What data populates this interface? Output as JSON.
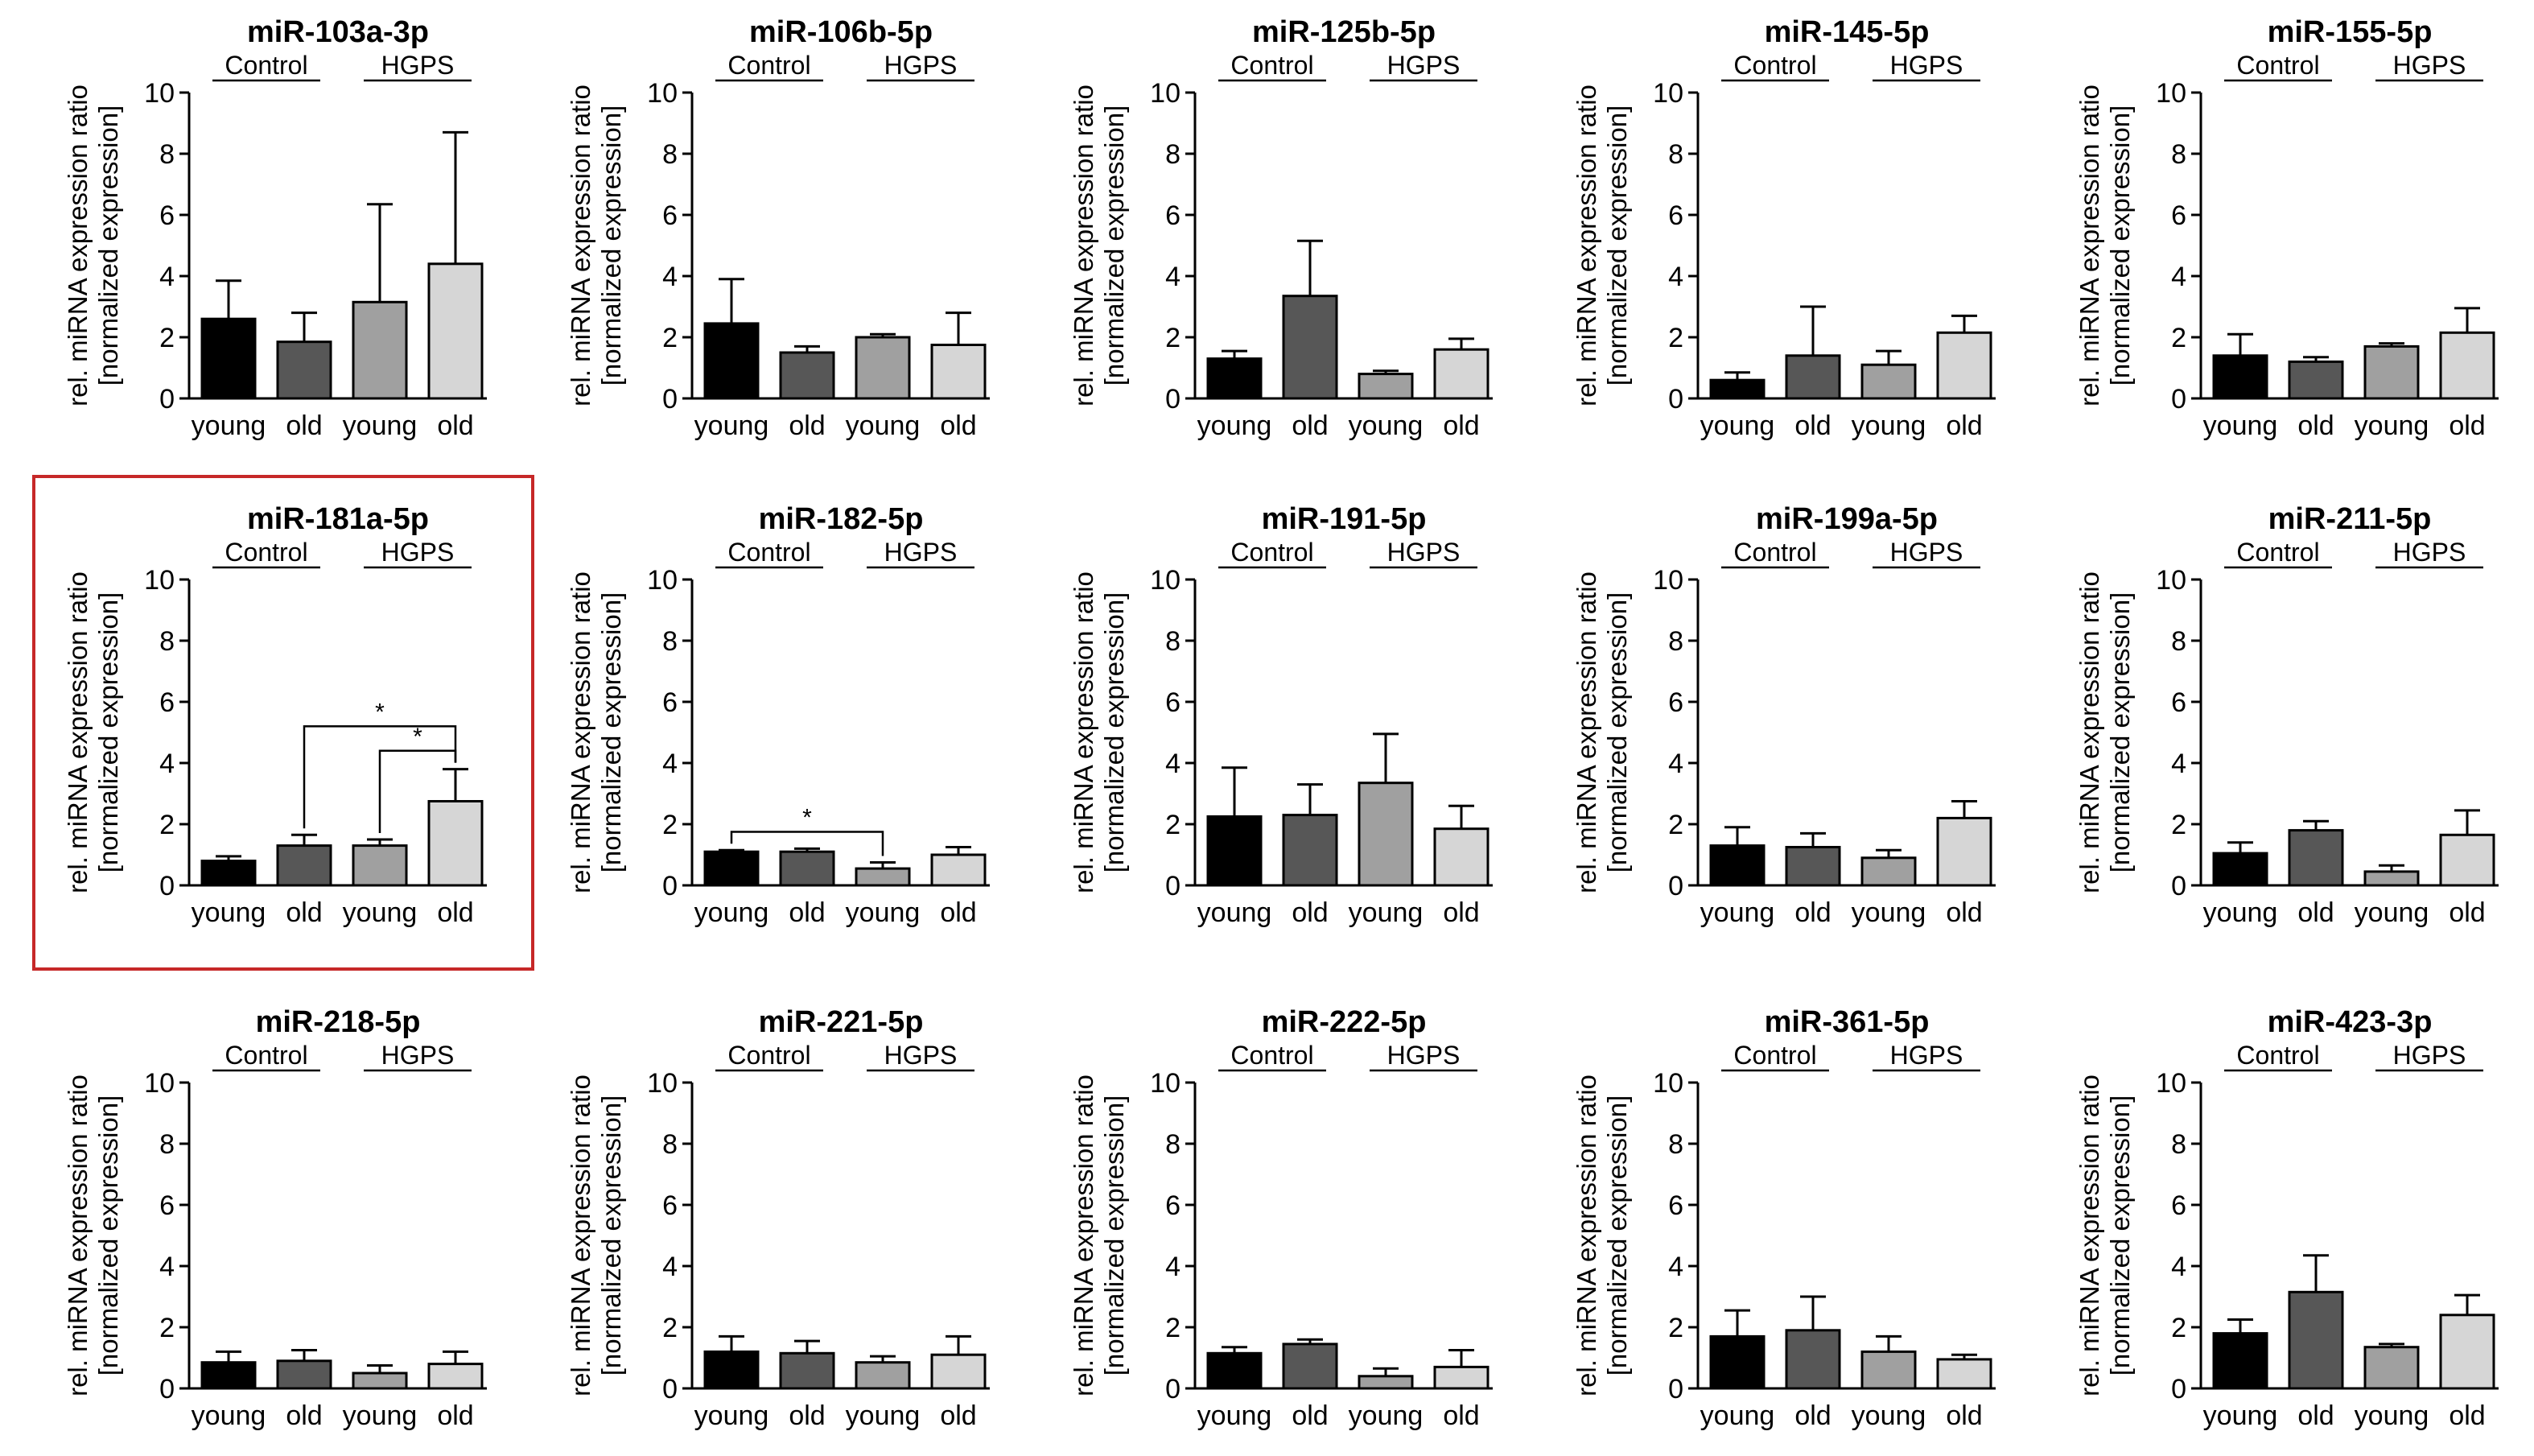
{
  "figure": {
    "ylabel_line1": "rel. miRNA expression ratio",
    "ylabel_line2": "[normalized expression]",
    "group_labels": [
      "Control",
      "HGPS"
    ],
    "bar_colors": [
      "#000000",
      "#575757",
      "#a0a0a0",
      "#d6d6d6"
    ],
    "highlight_color": "#c62828",
    "highlighted_panel": "miR-181a-5p"
  },
  "chart_data": [
    {
      "type": "bar",
      "title": "miR-103a-3p",
      "categories": [
        "young",
        "old",
        "young",
        "old"
      ],
      "values": [
        2.6,
        1.85,
        3.15,
        4.4
      ],
      "errors": [
        1.25,
        0.95,
        3.2,
        4.3
      ],
      "yticks": [
        0,
        2,
        4,
        6,
        8,
        10
      ],
      "ylim": [
        0,
        10
      ],
      "significance": []
    },
    {
      "type": "bar",
      "title": "miR-106b-5p",
      "categories": [
        "young",
        "old",
        "young",
        "old"
      ],
      "values": [
        2.45,
        1.5,
        2.0,
        1.75
      ],
      "errors": [
        1.45,
        0.2,
        0.1,
        1.05
      ],
      "yticks": [
        0,
        2,
        4,
        6,
        8,
        10
      ],
      "ylim": [
        0,
        10
      ],
      "significance": []
    },
    {
      "type": "bar",
      "title": "miR-125b-5p",
      "categories": [
        "young",
        "old",
        "young",
        "old"
      ],
      "values": [
        1.3,
        3.35,
        0.8,
        1.6
      ],
      "errors": [
        0.25,
        1.8,
        0.1,
        0.35
      ],
      "yticks": [
        0,
        2,
        4,
        6,
        8,
        10
      ],
      "ylim": [
        0,
        10
      ],
      "significance": []
    },
    {
      "type": "bar",
      "title": "miR-145-5p",
      "categories": [
        "young",
        "old",
        "young",
        "old"
      ],
      "values": [
        0.6,
        1.4,
        1.1,
        2.15
      ],
      "errors": [
        0.25,
        1.6,
        0.45,
        0.55
      ],
      "yticks": [
        0,
        2,
        4,
        6,
        8,
        10
      ],
      "ylim": [
        0,
        10
      ],
      "significance": []
    },
    {
      "type": "bar",
      "title": "miR-155-5p",
      "categories": [
        "young",
        "old",
        "young",
        "old"
      ],
      "values": [
        1.4,
        1.2,
        1.7,
        2.15
      ],
      "errors": [
        0.7,
        0.15,
        0.1,
        0.8
      ],
      "yticks": [
        0,
        2,
        4,
        6,
        8,
        10
      ],
      "ylim": [
        0,
        10
      ],
      "significance": []
    },
    {
      "type": "bar",
      "title": "miR-181a-5p",
      "categories": [
        "young",
        "old",
        "young",
        "old"
      ],
      "values": [
        0.8,
        1.3,
        1.3,
        2.75
      ],
      "errors": [
        0.15,
        0.35,
        0.2,
        1.05
      ],
      "yticks": [
        0,
        2,
        4,
        6,
        8,
        10
      ],
      "ylim": [
        0,
        10
      ],
      "significance": [
        {
          "from": 1,
          "to": 3,
          "label": "*"
        },
        {
          "from": 2,
          "to": 3,
          "label": "*"
        }
      ]
    },
    {
      "type": "bar",
      "title": "miR-182-5p",
      "categories": [
        "young",
        "old",
        "young",
        "old"
      ],
      "values": [
        1.1,
        1.1,
        0.55,
        1.0
      ],
      "errors": [
        0.05,
        0.1,
        0.2,
        0.25
      ],
      "yticks": [
        0,
        2,
        4,
        6,
        8,
        10
      ],
      "ylim": [
        0,
        10
      ],
      "significance": [
        {
          "from": 0,
          "to": 2,
          "label": "*"
        }
      ]
    },
    {
      "type": "bar",
      "title": "miR-191-5p",
      "categories": [
        "young",
        "old",
        "young",
        "old"
      ],
      "values": [
        2.25,
        2.3,
        3.35,
        1.85
      ],
      "errors": [
        1.6,
        1.0,
        1.6,
        0.75
      ],
      "yticks": [
        0,
        2,
        4,
        6,
        8,
        10
      ],
      "ylim": [
        0,
        10
      ],
      "significance": []
    },
    {
      "type": "bar",
      "title": "miR-199a-5p",
      "categories": [
        "young",
        "old",
        "young",
        "old"
      ],
      "values": [
        1.3,
        1.25,
        0.9,
        2.2
      ],
      "errors": [
        0.6,
        0.45,
        0.25,
        0.55
      ],
      "yticks": [
        0,
        2,
        4,
        6,
        8,
        10
      ],
      "ylim": [
        0,
        10
      ],
      "significance": []
    },
    {
      "type": "bar",
      "title": "miR-211-5p",
      "categories": [
        "young",
        "old",
        "young",
        "old"
      ],
      "values": [
        1.05,
        1.8,
        0.45,
        1.65
      ],
      "errors": [
        0.35,
        0.3,
        0.2,
        0.8
      ],
      "yticks": [
        0,
        2,
        4,
        6,
        8,
        10
      ],
      "ylim": [
        0,
        10
      ],
      "significance": []
    },
    {
      "type": "bar",
      "title": "miR-218-5p",
      "categories": [
        "young",
        "old",
        "young",
        "old"
      ],
      "values": [
        0.85,
        0.9,
        0.5,
        0.8
      ],
      "errors": [
        0.35,
        0.35,
        0.25,
        0.4
      ],
      "yticks": [
        0,
        2,
        4,
        6,
        8,
        10
      ],
      "ylim": [
        0,
        10
      ],
      "significance": []
    },
    {
      "type": "bar",
      "title": "miR-221-5p",
      "categories": [
        "young",
        "old",
        "young",
        "old"
      ],
      "values": [
        1.2,
        1.15,
        0.85,
        1.1
      ],
      "errors": [
        0.5,
        0.4,
        0.2,
        0.6
      ],
      "yticks": [
        0,
        2,
        4,
        6,
        8,
        10
      ],
      "ylim": [
        0,
        10
      ],
      "significance": []
    },
    {
      "type": "bar",
      "title": "miR-222-5p",
      "categories": [
        "young",
        "old",
        "young",
        "old"
      ],
      "values": [
        1.15,
        1.45,
        0.4,
        0.7
      ],
      "errors": [
        0.2,
        0.15,
        0.25,
        0.55
      ],
      "yticks": [
        0,
        2,
        4,
        6,
        8,
        10
      ],
      "ylim": [
        0,
        10
      ],
      "significance": []
    },
    {
      "type": "bar",
      "title": "miR-361-5p",
      "categories": [
        "young",
        "old",
        "young",
        "old"
      ],
      "values": [
        1.7,
        1.9,
        1.2,
        0.95
      ],
      "errors": [
        0.85,
        1.1,
        0.5,
        0.15
      ],
      "yticks": [
        0,
        2,
        4,
        6,
        8,
        10
      ],
      "ylim": [
        0,
        10
      ],
      "significance": []
    },
    {
      "type": "bar",
      "title": "miR-423-3p",
      "categories": [
        "young",
        "old",
        "young",
        "old"
      ],
      "values": [
        1.8,
        3.15,
        1.35,
        2.4
      ],
      "errors": [
        0.45,
        1.2,
        0.1,
        0.65
      ],
      "yticks": [
        0,
        2,
        4,
        6,
        8,
        10
      ],
      "ylim": [
        0,
        10
      ],
      "significance": []
    }
  ]
}
